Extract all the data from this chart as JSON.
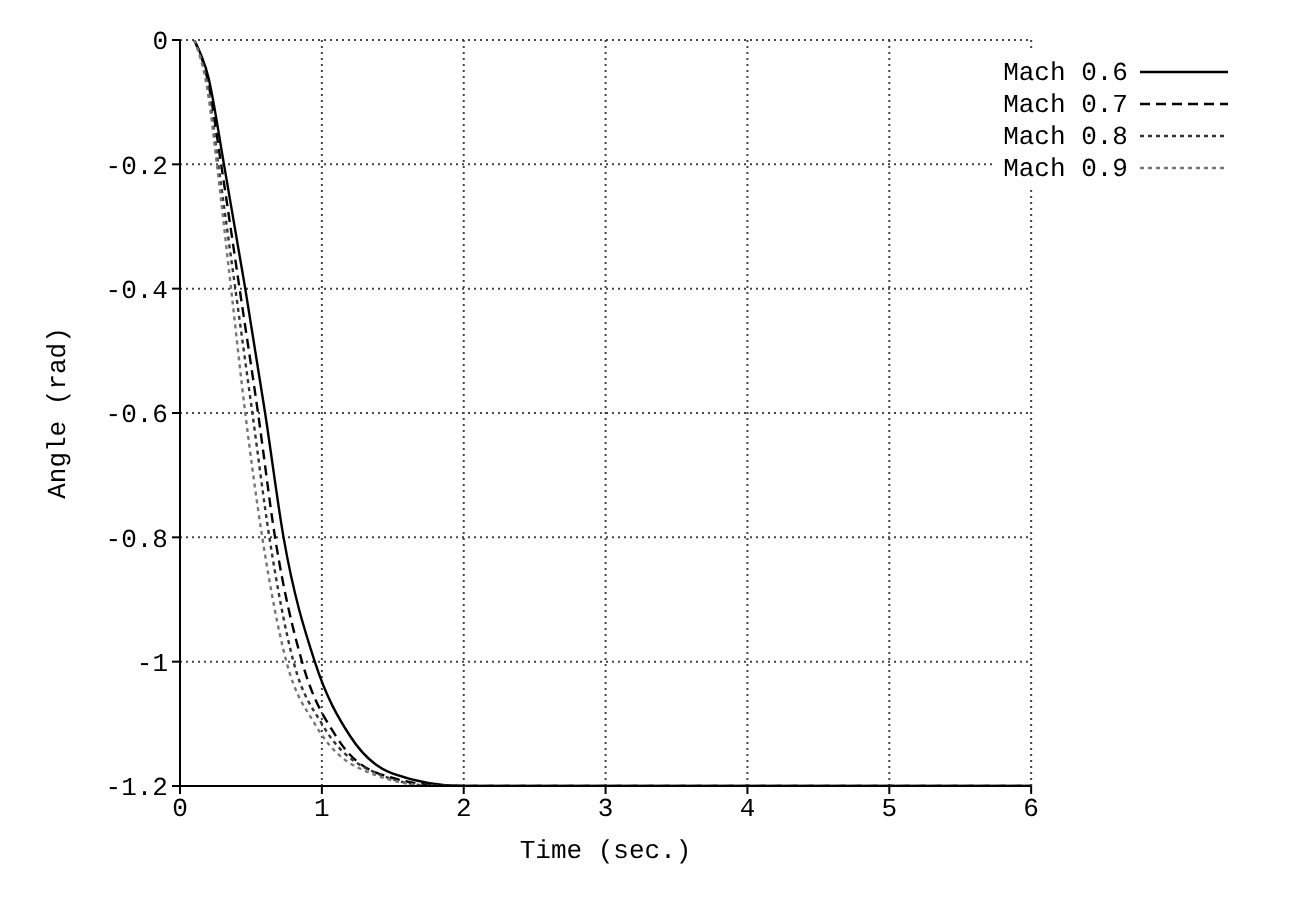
{
  "chart_data": {
    "type": "line",
    "xlabel": "Time (sec.)",
    "ylabel": "Angle (rad)",
    "xlim": [
      0,
      6
    ],
    "ylim": [
      -1.2,
      0
    ],
    "xticks": [
      0,
      1,
      2,
      3,
      4,
      5,
      6
    ],
    "yticks": [
      -1.2,
      -1,
      -0.8,
      -0.6,
      -0.4,
      -0.2,
      0
    ],
    "grid": true,
    "legend": "top right",
    "marker": "none",
    "series": [
      {
        "name": "Mach 0.6",
        "color": "#000000",
        "line_style": "solid",
        "x": [
          0.1,
          0.2,
          0.31,
          0.46,
          0.6,
          0.73,
          0.95,
          1.2,
          1.5,
          2,
          6
        ],
        "values": [
          0,
          -0.06,
          -0.2,
          -0.4,
          -0.6,
          -0.8,
          -1,
          -1.12,
          -1.18,
          -1.2,
          -1.2
        ]
      },
      {
        "name": "Mach 0.7",
        "color": "#000000",
        "line_style": "dashed",
        "x": [
          0.1,
          0.2,
          0.29,
          0.42,
          0.55,
          0.67,
          0.86,
          1.1,
          1.4,
          1.9,
          6
        ],
        "values": [
          0,
          -0.07,
          -0.2,
          -0.4,
          -0.6,
          -0.8,
          -1,
          -1.12,
          -1.18,
          -1.2,
          -1.2
        ]
      },
      {
        "name": "Mach 0.8",
        "color": "#333333",
        "line_style": "dotted",
        "x": [
          0.1,
          0.2,
          0.27,
          0.39,
          0.51,
          0.63,
          0.8,
          1,
          1.3,
          1.8,
          6
        ],
        "values": [
          0,
          -0.08,
          -0.2,
          -0.4,
          -0.6,
          -0.8,
          -1,
          -1.1,
          -1.17,
          -1.2,
          -1.2
        ]
      },
      {
        "name": "Mach 0.9",
        "color": "#777777",
        "line_style": "dotted",
        "x": [
          0.1,
          0.2,
          0.26,
          0.36,
          0.46,
          0.58,
          0.75,
          0.95,
          1.25,
          1.8,
          6
        ],
        "values": [
          0,
          -0.09,
          -0.2,
          -0.4,
          -0.6,
          -0.8,
          -1,
          -1.1,
          -1.17,
          -1.2,
          -1.2
        ]
      }
    ]
  }
}
